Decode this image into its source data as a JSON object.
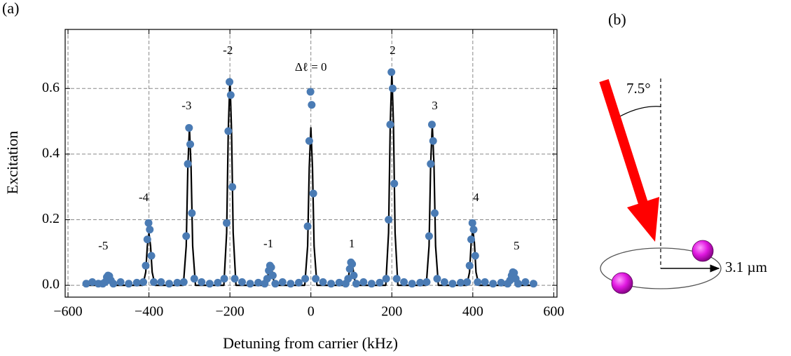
{
  "chart_data": {
    "type": "scatter",
    "panel_label": "(a)",
    "x_label": "Detuning from carrier (kHz)",
    "y_label": "Excitation",
    "xlim": [
      -607,
      608
    ],
    "ylim": [
      -0.036,
      0.78
    ],
    "xticks": [
      {
        "value": -600,
        "label": "−600"
      },
      {
        "value": -400,
        "label": "−400"
      },
      {
        "value": -200,
        "label": "−200"
      },
      0,
      200,
      400,
      600
    ],
    "yticks": [
      {
        "value": 0,
        "label": "0.0"
      },
      0.2,
      0.4,
      0.6
    ],
    "grid": true,
    "series": [
      {
        "kind": "line",
        "color": "#000000",
        "x": [
          -560,
          -515,
          -508,
          -504,
          -500,
          -496,
          -492,
          -485,
          -415,
          -408,
          -404,
          -400,
          -396,
          -392,
          -385,
          -315,
          -308,
          -304,
          -300,
          -296,
          -292,
          -285,
          -215,
          -208,
          -204,
          -200,
          -196,
          -192,
          -185,
          -115,
          -108,
          -104,
          -100,
          -96,
          -92,
          -85,
          -15,
          -8,
          -4,
          0,
          4,
          8,
          15,
          85,
          92,
          96,
          100,
          104,
          108,
          115,
          185,
          192,
          196,
          200,
          204,
          208,
          215,
          285,
          292,
          296,
          300,
          304,
          308,
          315,
          385,
          392,
          396,
          400,
          404,
          408,
          415,
          485,
          492,
          496,
          500,
          504,
          508,
          515,
          550
        ],
        "values": [
          0,
          0,
          0.008,
          0.022,
          0.03,
          0.022,
          0.008,
          0,
          0,
          0.04,
          0.12,
          0.16,
          0.12,
          0.04,
          0,
          0,
          0.12,
          0.36,
          0.48,
          0.36,
          0.12,
          0,
          0,
          0.16,
          0.47,
          0.63,
          0.47,
          0.16,
          0,
          0,
          0.015,
          0.045,
          0.06,
          0.045,
          0.015,
          0,
          0,
          0.12,
          0.36,
          0.48,
          0.36,
          0.12,
          0,
          0,
          0.018,
          0.052,
          0.07,
          0.052,
          0.018,
          0,
          0,
          0.16,
          0.49,
          0.65,
          0.49,
          0.16,
          0,
          0,
          0.12,
          0.37,
          0.49,
          0.37,
          0.12,
          0,
          0,
          0.04,
          0.13,
          0.17,
          0.13,
          0.04,
          0,
          0,
          0.01,
          0.03,
          0.04,
          0.03,
          0.01,
          0,
          0
        ]
      },
      {
        "kind": "scatter",
        "color": "#4a7bb4",
        "x": [
          -555,
          -540,
          -525,
          -514,
          -508,
          -504,
          -501,
          -498,
          -494,
          -488,
          -470,
          -450,
          -430,
          -414,
          -408,
          -404,
          -401,
          -398,
          -394,
          -388,
          -370,
          -350,
          -330,
          -314,
          -308,
          -304,
          -301,
          -298,
          -294,
          -288,
          -270,
          -250,
          -230,
          -214,
          -208,
          -204,
          -201,
          -198,
          -194,
          -188,
          -170,
          -150,
          -130,
          -114,
          -108,
          -104,
          -101,
          -98,
          -94,
          -88,
          -70,
          -50,
          -30,
          -14,
          -8,
          -4,
          -1,
          2,
          6,
          12,
          30,
          50,
          70,
          86,
          92,
          96,
          99,
          102,
          106,
          112,
          130,
          150,
          170,
          186,
          192,
          196,
          199,
          202,
          206,
          212,
          230,
          250,
          270,
          286,
          292,
          296,
          299,
          302,
          306,
          312,
          330,
          350,
          370,
          386,
          392,
          396,
          399,
          402,
          406,
          412,
          430,
          450,
          470,
          486,
          492,
          496,
          499,
          502,
          506,
          512,
          530,
          550
        ],
        "values": [
          0.005,
          0.01,
          0.005,
          0.005,
          0.01,
          0.025,
          0.03,
          0.028,
          0.015,
          0.005,
          0.01,
          0.005,
          0.008,
          0.01,
          0.06,
          0.14,
          0.19,
          0.17,
          0.09,
          0.01,
          0.01,
          0.005,
          0.008,
          0.01,
          0.15,
          0.37,
          0.48,
          0.43,
          0.22,
          0.02,
          0.01,
          0.005,
          0.008,
          0.02,
          0.19,
          0.47,
          0.62,
          0.58,
          0.3,
          0.02,
          0.01,
          0.005,
          0.008,
          0.005,
          0.02,
          0.045,
          0.06,
          0.055,
          0.03,
          0.005,
          0.01,
          0.005,
          0.008,
          0.02,
          0.18,
          0.44,
          0.59,
          0.55,
          0.28,
          0.02,
          0.01,
          0.005,
          0.008,
          0.005,
          0.02,
          0.05,
          0.07,
          0.065,
          0.03,
          0.005,
          0.01,
          0.005,
          0.008,
          0.02,
          0.2,
          0.49,
          0.65,
          0.6,
          0.31,
          0.02,
          0.01,
          0.005,
          0.008,
          0.01,
          0.15,
          0.37,
          0.49,
          0.44,
          0.22,
          0.02,
          0.01,
          0.005,
          0.008,
          0.01,
          0.06,
          0.14,
          0.19,
          0.17,
          0.09,
          0.01,
          0.01,
          0.005,
          0.008,
          0.005,
          0.015,
          0.03,
          0.04,
          0.038,
          0.02,
          0.005,
          0.01,
          0.005
        ]
      }
    ],
    "annotations": [
      {
        "text": "-5",
        "x": -513,
        "y": 0.118
      },
      {
        "text": "-4",
        "x": -413,
        "y": 0.265
      },
      {
        "text": "-3",
        "x": -307,
        "y": 0.545
      },
      {
        "text": "-2",
        "x": -205,
        "y": 0.714
      },
      {
        "text": "Δℓ = 0",
        "x": 0,
        "y": 0.662
      },
      {
        "text": "-1",
        "x": -105,
        "y": 0.124
      },
      {
        "text": "1",
        "x": 101,
        "y": 0.124
      },
      {
        "text": "2",
        "x": 202,
        "y": 0.714
      },
      {
        "text": "3",
        "x": 306,
        "y": 0.545
      },
      {
        "text": "4",
        "x": 408,
        "y": 0.265
      },
      {
        "text": "5",
        "x": 508,
        "y": 0.118
      }
    ]
  },
  "diagram": {
    "panel_label": "(b)",
    "angle_label": "7.5°",
    "distance_label": "3.1 µm"
  }
}
